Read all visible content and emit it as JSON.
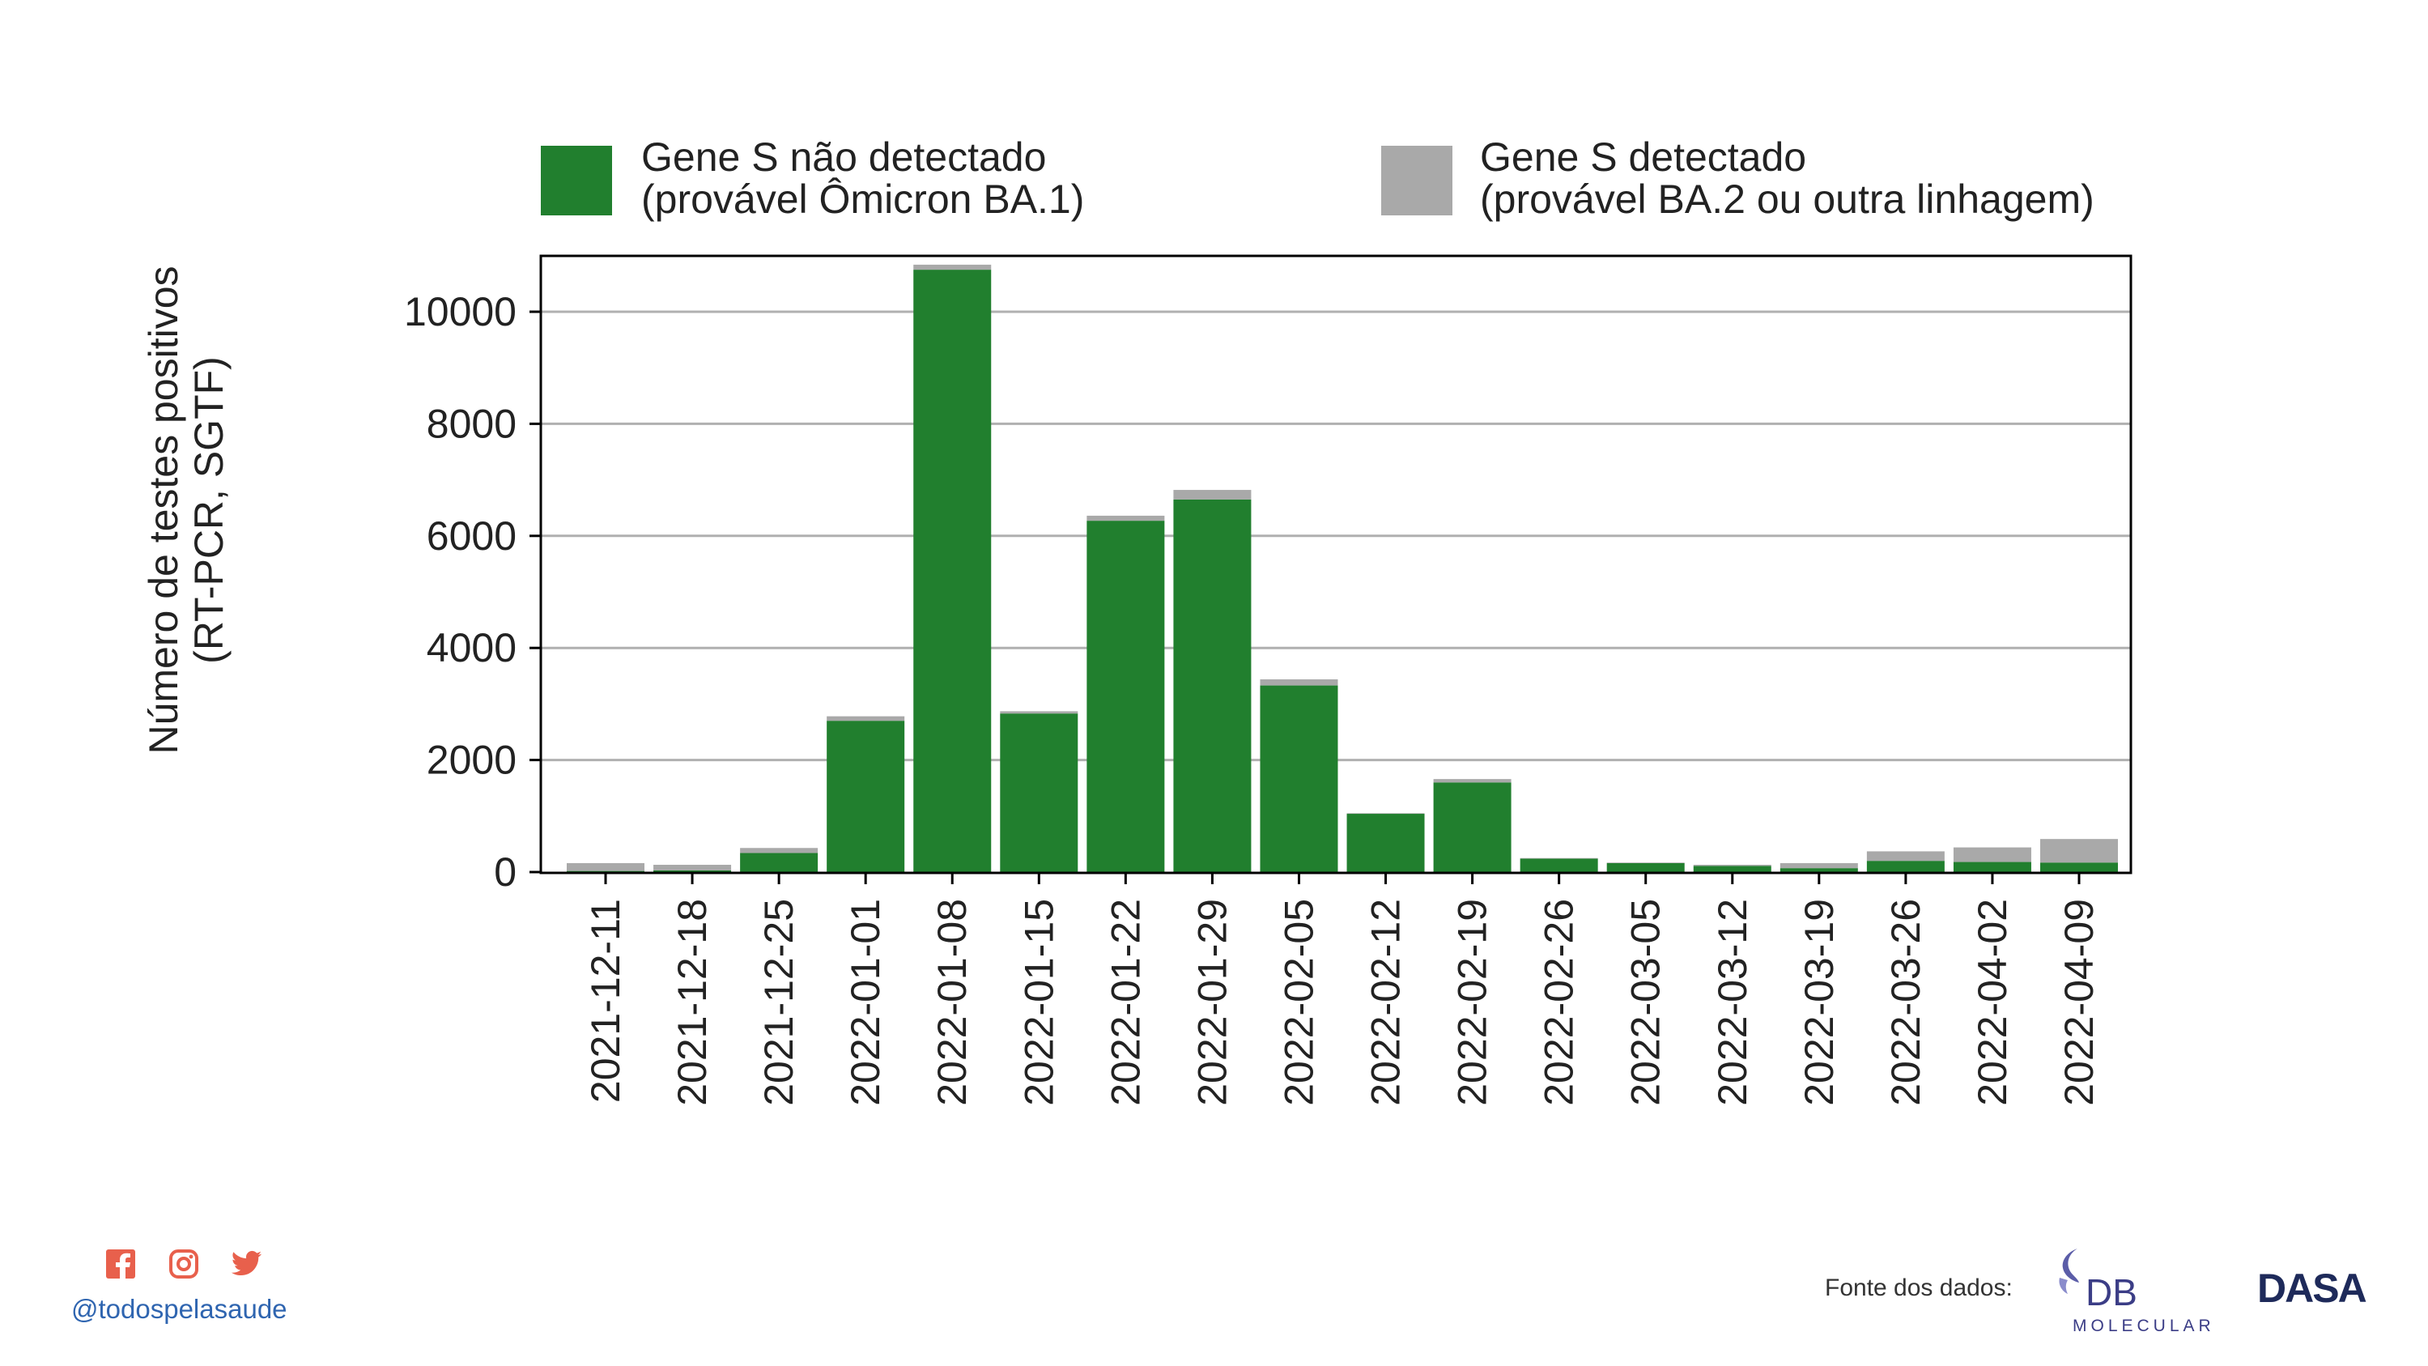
{
  "legend": [
    {
      "line1": "Gene S não detectado",
      "line2": "(provável Ômicron BA.1)",
      "color": "#217f2e"
    },
    {
      "line1": "Gene S detectado",
      "line2": "(provável BA.2 ou outra linhagem)",
      "color": "#a9a9a9"
    }
  ],
  "ylabel": {
    "line1": "Número de testes positivos",
    "line2": "(RT-PCR, SGTF)"
  },
  "chart_data": {
    "type": "bar",
    "stacked": true,
    "categories": [
      "2021-12-11",
      "2021-12-18",
      "2021-12-25",
      "2022-01-01",
      "2022-01-08",
      "2022-01-15",
      "2022-01-22",
      "2022-01-29",
      "2022-02-05",
      "2022-02-12",
      "2022-02-19",
      "2022-02-26",
      "2022-03-05",
      "2022-03-12",
      "2022-03-19",
      "2022-03-26",
      "2022-04-02",
      "2022-04-09"
    ],
    "series": [
      {
        "name": "Gene S não detectado (provável Ômicron BA.1)",
        "color": "#217f2e",
        "values": [
          20,
          30,
          340,
          2700,
          10750,
          2830,
          6270,
          6650,
          3330,
          1040,
          1600,
          240,
          160,
          110,
          70,
          200,
          180,
          170
        ]
      },
      {
        "name": "Gene S detectado (provável BA.2 ou outra linhagem)",
        "color": "#a9a9a9",
        "values": [
          140,
          100,
          90,
          80,
          90,
          40,
          90,
          170,
          110,
          10,
          60,
          10,
          10,
          20,
          90,
          170,
          260,
          420
        ]
      }
    ],
    "yticks": [
      0,
      2000,
      4000,
      6000,
      8000,
      10000
    ],
    "ylim": [
      0,
      11000
    ],
    "ylabel": "Número de testes positivos (RT-PCR, SGTF)",
    "xlabel": "",
    "grid": "horizontal"
  },
  "footer": {
    "handle": "@todospelasaude",
    "social_icons": [
      "facebook-icon",
      "instagram-icon",
      "twitter-icon"
    ],
    "social_color": "#e8604c",
    "source_label": "Fonte dos dados:",
    "db_logo_text": "DB",
    "db_logo_subtext": "MOLECULAR",
    "dasa_logo_text": "DASA"
  }
}
